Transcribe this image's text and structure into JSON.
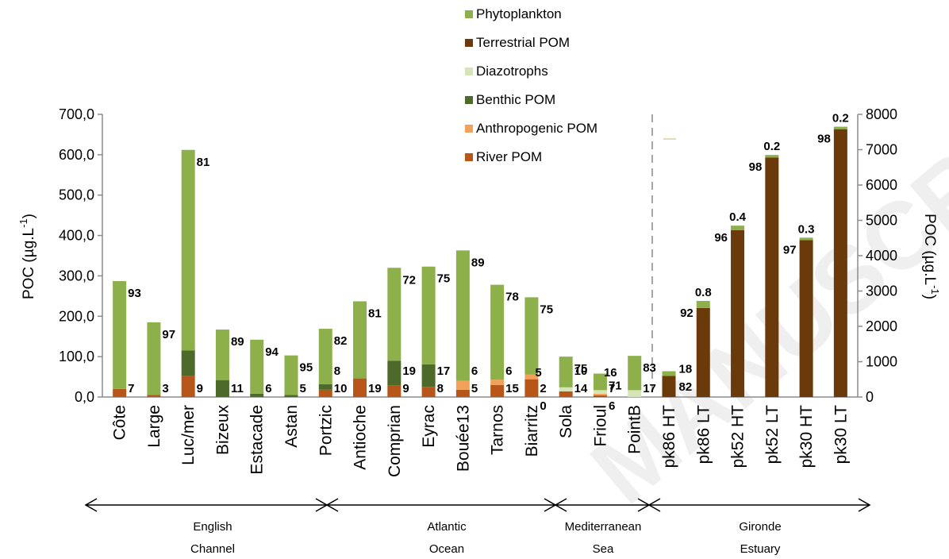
{
  "chart_data": {
    "type": "bar",
    "stacked": true,
    "y_left": {
      "label": "POC (µg.L",
      "label_sup": "-1",
      "label_close": ")",
      "range": [
        0,
        700
      ],
      "ticks": [
        "0,0",
        "100,0",
        "200,0",
        "300,0",
        "400,0",
        "500,0",
        "600,0",
        "700,0"
      ]
    },
    "y_right": {
      "label": "POC (µg.L",
      "label_sup": "-1",
      "label_close": ")",
      "range": [
        0,
        8000
      ],
      "ticks": [
        "0",
        "1000",
        "2000",
        "3000",
        "4000",
        "5000",
        "6000",
        "7000",
        "8000"
      ]
    },
    "legend": [
      {
        "key": "phyto",
        "label": "Phytoplankton",
        "color": "#8db04b"
      },
      {
        "key": "terr",
        "label": "Terrestrial POM",
        "color": "#6b3a0b"
      },
      {
        "key": "diazo",
        "label": "Diazotrophs",
        "color": "#d5e5b5"
      },
      {
        "key": "benthic",
        "label": "Benthic POM",
        "color": "#4e6a2a"
      },
      {
        "key": "anthro",
        "label": "Anthropogenic POM",
        "color": "#f2a15a"
      },
      {
        "key": "river",
        "label": "River POM",
        "color": "#b8561a"
      }
    ],
    "categories": [
      "Côte",
      "Large",
      "Luc/mer",
      "Bizeux",
      "Estacade",
      "Astan",
      "Portzic",
      "Antioche",
      "Comprian",
      "Eyrac",
      "Bouée13",
      "Tarnos",
      "Biarritz",
      "Sola",
      "Frioul",
      "PointB",
      "pk86 HT",
      "pk86 LT",
      "pk52 HT",
      "pk52 LT",
      "pk30 HT",
      "pk30 LT"
    ],
    "bars": [
      {
        "axis": "left",
        "segments": {
          "river": 20,
          "phyto": 267
        },
        "labels": [
          "93",
          "7"
        ]
      },
      {
        "axis": "left",
        "segments": {
          "river": 5,
          "phyto": 180
        },
        "labels": [
          "97",
          "3"
        ]
      },
      {
        "axis": "left",
        "segments": {
          "river": 53,
          "benthic": 62,
          "phyto": 497
        },
        "labels": [
          "81",
          "9"
        ]
      },
      {
        "axis": "left",
        "segments": {
          "benthic": 42,
          "phyto": 125
        },
        "labels": [
          "89",
          "11"
        ]
      },
      {
        "axis": "left",
        "segments": {
          "benthic": 8,
          "phyto": 134
        },
        "labels": [
          "94",
          "6"
        ]
      },
      {
        "axis": "left",
        "segments": {
          "benthic": 5,
          "phyto": 98
        },
        "labels": [
          "95",
          "5"
        ]
      },
      {
        "axis": "left",
        "segments": {
          "river": 18,
          "benthic": 14,
          "phyto": 137
        },
        "labels": [
          "82",
          "8",
          "10"
        ]
      },
      {
        "axis": "left",
        "segments": {
          "river": 46,
          "phyto": 191
        },
        "labels": [
          "81",
          "19"
        ]
      },
      {
        "axis": "left",
        "segments": {
          "river": 28,
          "benthic": 62,
          "phyto": 230
        },
        "labels": [
          "72",
          "19",
          "9"
        ]
      },
      {
        "axis": "left",
        "segments": {
          "river": 25,
          "benthic": 56,
          "phyto": 242
        },
        "labels": [
          "75",
          "17",
          "8"
        ]
      },
      {
        "axis": "left",
        "segments": {
          "river": 18,
          "anthro": 22,
          "phyto": 323
        },
        "labels": [
          "89",
          "6",
          "5"
        ]
      },
      {
        "axis": "left",
        "segments": {
          "river": 30,
          "anthro": 13,
          "phyto": 235
        },
        "labels": [
          "78",
          "6",
          "15"
        ]
      },
      {
        "axis": "left",
        "segments": {
          "river": 44,
          "anthro": 12,
          "phyto": 191
        },
        "labels": [
          "75",
          "5",
          "2",
          "0"
        ]
      },
      {
        "axis": "left",
        "segments": {
          "river": 14,
          "diazo": 10,
          "phyto": 76
        },
        "labels": [
          "75",
          "10",
          "14"
        ]
      },
      {
        "axis": "left",
        "segments": {
          "river": 4,
          "anthro": 4,
          "diazo": 9,
          "phyto": 41
        },
        "labels": [
          "71",
          "16",
          "7",
          "6"
        ]
      },
      {
        "axis": "left",
        "segments": {
          "diazo": 17,
          "phyto": 85
        },
        "labels": [
          "83",
          "17"
        ]
      },
      {
        "axis": "right",
        "segments": {
          "terr": 600,
          "phyto": 130
        },
        "labels": [
          "18",
          "82"
        ]
      },
      {
        "axis": "right",
        "segments": {
          "terr": 2520,
          "phyto": 200
        },
        "labels": [
          "0.8",
          "92"
        ]
      },
      {
        "axis": "right",
        "segments": {
          "terr": 4720,
          "phyto": 130
        },
        "labels": [
          "0.4",
          "96"
        ]
      },
      {
        "axis": "right",
        "segments": {
          "terr": 6780,
          "phyto": 70
        },
        "labels": [
          "0.2",
          "98"
        ]
      },
      {
        "axis": "right",
        "segments": {
          "terr": 4440,
          "phyto": 70
        },
        "labels": [
          "0.3",
          "97"
        ]
      },
      {
        "axis": "right",
        "segments": {
          "terr": 7580,
          "phyto": 70
        },
        "labels": [
          "0.2",
          "98"
        ]
      }
    ],
    "regions": [
      {
        "line1": "English",
        "line2": "Channel"
      },
      {
        "line1": "Atlantic",
        "line2": "Ocean"
      },
      {
        "line1": "Mediterranean",
        "line2": "Sea"
      },
      {
        "line1": "Gironde",
        "line2": "Estuary"
      }
    ]
  },
  "watermark": "MANUSCRIPT"
}
